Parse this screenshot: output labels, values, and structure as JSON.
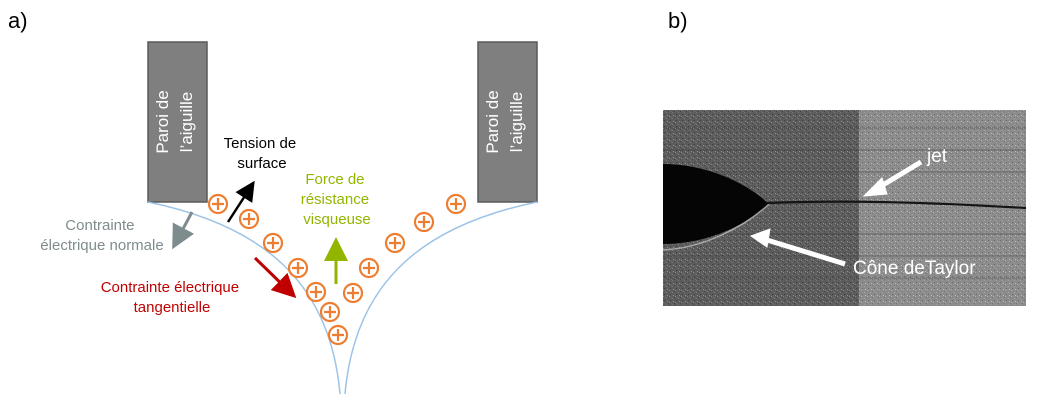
{
  "panel_a": {
    "label": "a)",
    "needle_wall_left": [
      "Paroi de",
      "l’aiguille"
    ],
    "needle_wall_right": [
      "Paroi de",
      "l’aiguille"
    ],
    "surface_tension": [
      "Tension de",
      "surface"
    ],
    "viscous_force": [
      "Force de",
      "résistance",
      "visqueuse"
    ],
    "normal_stress": [
      "Contrainte",
      "électrique normale"
    ],
    "tangential_stress": [
      "Contrainte électrique",
      "tangentielle"
    ],
    "charge_symbol": "+"
  },
  "panel_b": {
    "label": "b)",
    "jet_label": "jet",
    "cone_label": "Cône deTaylor"
  },
  "colors": {
    "wall_fill": "#7f7f7f",
    "wall_stroke": "#595959",
    "meniscus": "#9dc3e6",
    "charge": "#ed7d31",
    "surface_tension_arrow": "#000000",
    "viscous_arrow": "#92b500",
    "normal_arrow": "#7f8c8d",
    "tangential_arrow": "#c00000"
  }
}
